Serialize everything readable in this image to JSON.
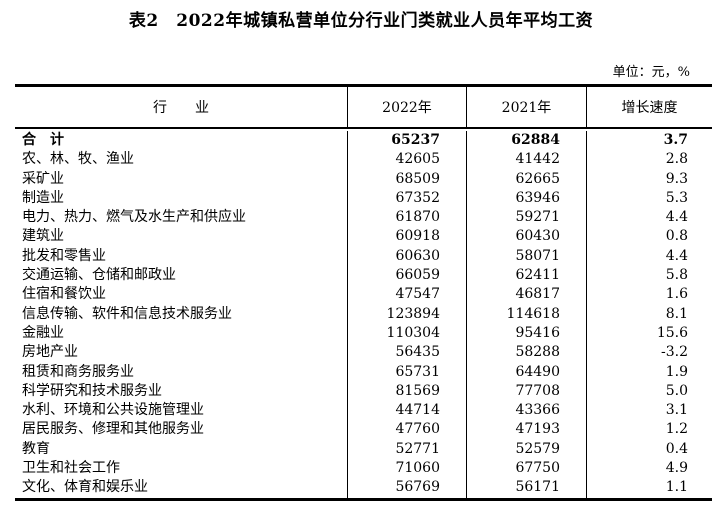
{
  "page": {
    "title": "表2　2022年城镇私营单位分行业门类就业人员年平均工资",
    "unit_note": "单位：元，%"
  },
  "table": {
    "columns": {
      "industry": "行　　业",
      "y2022": "2022年",
      "y2021": "2021年",
      "growth": "增长速度"
    },
    "rows": [
      {
        "industry": "合　计",
        "y2022": "65237",
        "y2021": "62884",
        "growth": "3.7",
        "bold": true
      },
      {
        "industry": "农、林、牧、渔业",
        "y2022": "42605",
        "y2021": "41442",
        "growth": "2.8",
        "bold": false
      },
      {
        "industry": "采矿业",
        "y2022": "68509",
        "y2021": "62665",
        "growth": "9.3",
        "bold": false
      },
      {
        "industry": "制造业",
        "y2022": "67352",
        "y2021": "63946",
        "growth": "5.3",
        "bold": false
      },
      {
        "industry": "电力、热力、燃气及水生产和供应业",
        "y2022": "61870",
        "y2021": "59271",
        "growth": "4.4",
        "bold": false
      },
      {
        "industry": "建筑业",
        "y2022": "60918",
        "y2021": "60430",
        "growth": "0.8",
        "bold": false
      },
      {
        "industry": "批发和零售业",
        "y2022": "60630",
        "y2021": "58071",
        "growth": "4.4",
        "bold": false
      },
      {
        "industry": "交通运输、仓储和邮政业",
        "y2022": "66059",
        "y2021": "62411",
        "growth": "5.8",
        "bold": false
      },
      {
        "industry": "住宿和餐饮业",
        "y2022": "47547",
        "y2021": "46817",
        "growth": "1.6",
        "bold": false
      },
      {
        "industry": "信息传输、软件和信息技术服务业",
        "y2022": "123894",
        "y2021": "114618",
        "growth": "8.1",
        "bold": false
      },
      {
        "industry": "金融业",
        "y2022": "110304",
        "y2021": "95416",
        "growth": "15.6",
        "bold": false
      },
      {
        "industry": "房地产业",
        "y2022": "56435",
        "y2021": "58288",
        "growth": "-3.2",
        "bold": false
      },
      {
        "industry": "租赁和商务服务业",
        "y2022": "65731",
        "y2021": "64490",
        "growth": "1.9",
        "bold": false
      },
      {
        "industry": "科学研究和技术服务业",
        "y2022": "81569",
        "y2021": "77708",
        "growth": "5.0",
        "bold": false
      },
      {
        "industry": "水利、环境和公共设施管理业",
        "y2022": "44714",
        "y2021": "43366",
        "growth": "3.1",
        "bold": false
      },
      {
        "industry": "居民服务、修理和其他服务业",
        "y2022": "47760",
        "y2021": "47193",
        "growth": "1.2",
        "bold": false
      },
      {
        "industry": "教育",
        "y2022": "52771",
        "y2021": "52579",
        "growth": "0.4",
        "bold": false
      },
      {
        "industry": "卫生和社会工作",
        "y2022": "71060",
        "y2021": "67750",
        "growth": "4.9",
        "bold": false
      },
      {
        "industry": "文化、体育和娱乐业",
        "y2022": "56769",
        "y2021": "56171",
        "growth": "1.1",
        "bold": false
      }
    ]
  }
}
